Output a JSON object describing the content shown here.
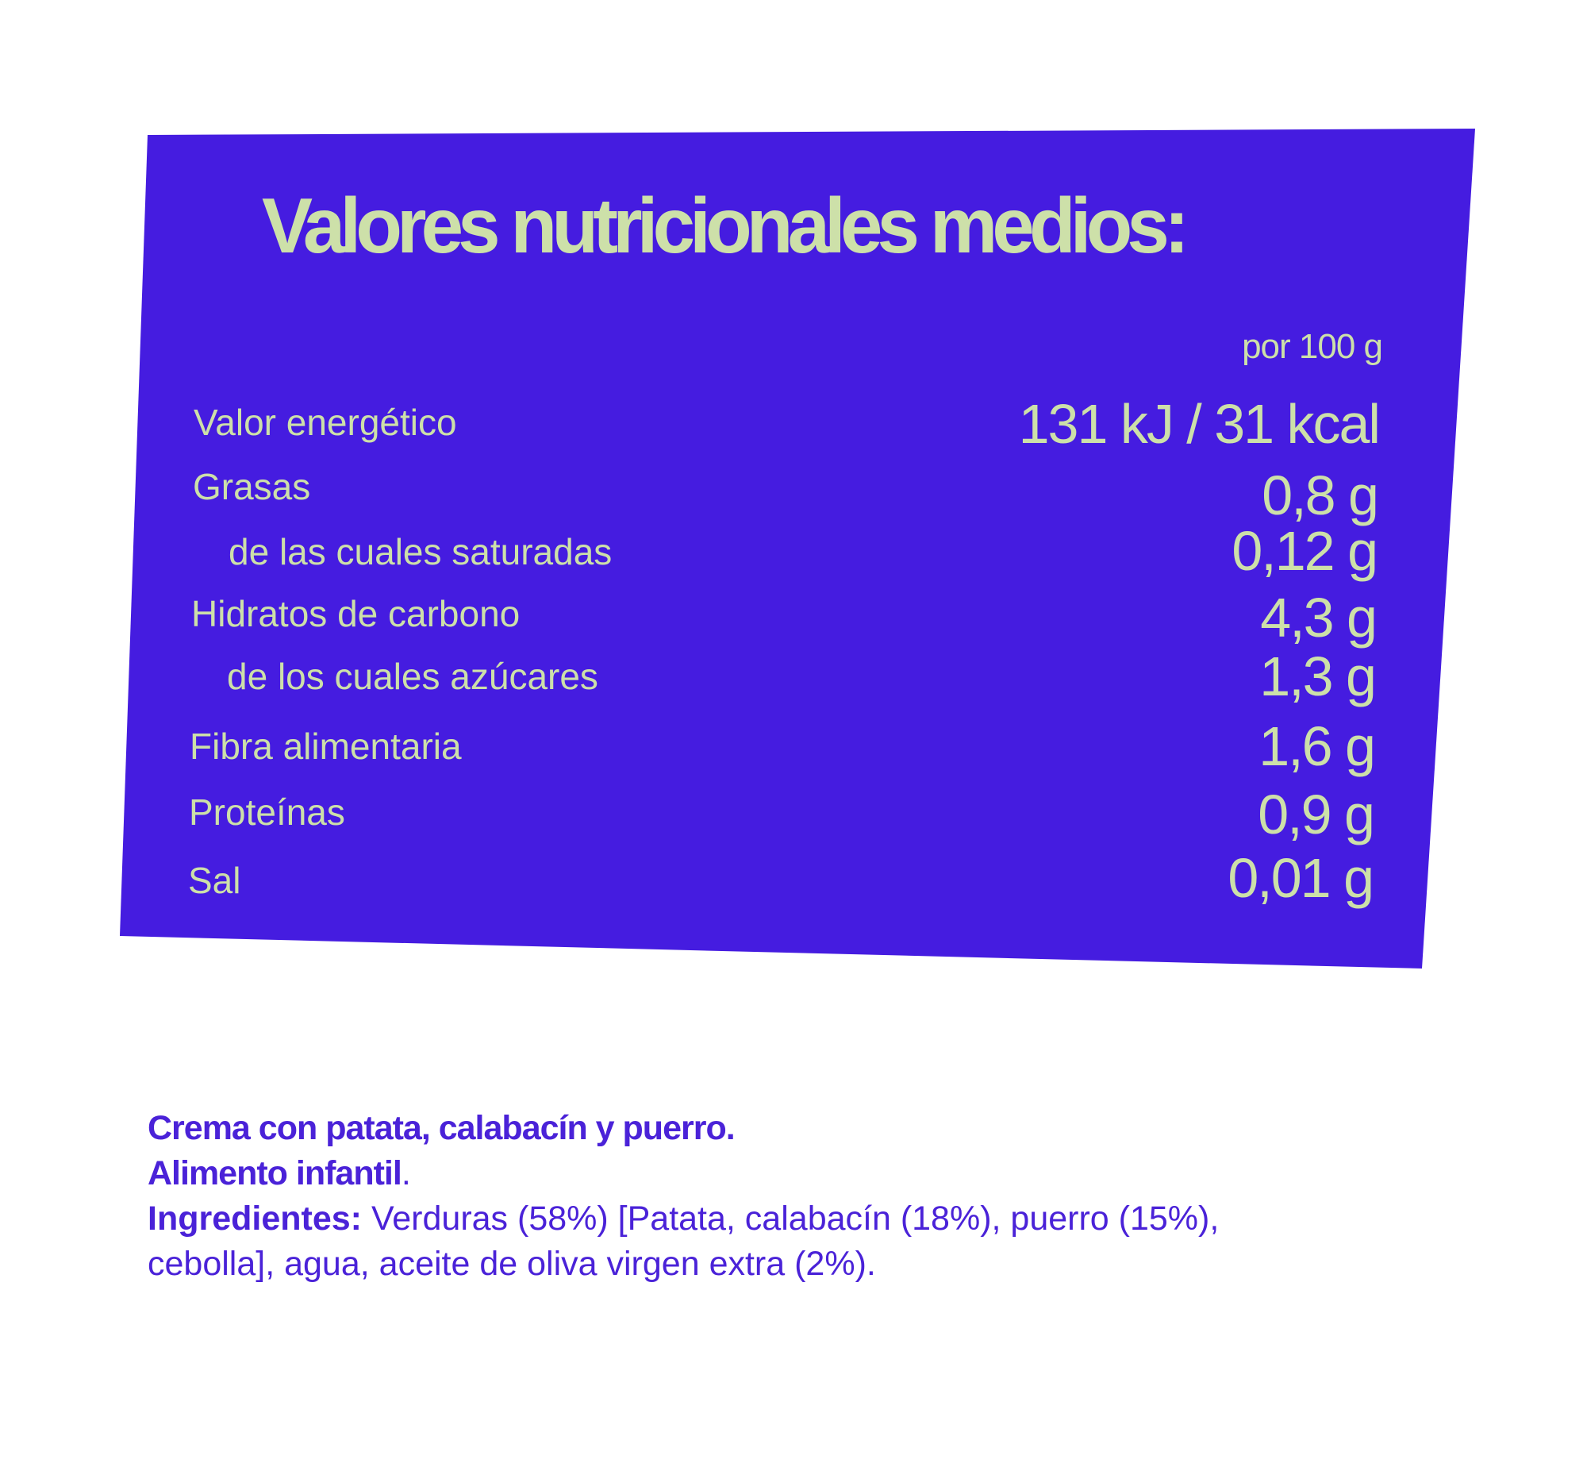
{
  "colors": {
    "panel": "#451ce0",
    "panel_text": "#cde0a9",
    "ingredients_text": "#4a22d8"
  },
  "nutrition": {
    "title": "Valores nutricionales medios:",
    "per": "por 100 g",
    "rows": [
      {
        "label": "Valor energético",
        "value": "131 kJ / 31 kcal"
      },
      {
        "label": "Grasas",
        "value": "0,8 g"
      },
      {
        "label": "de las cuales saturadas",
        "value": "0,12 g"
      },
      {
        "label": "Hidratos de carbono",
        "value": "4,3 g"
      },
      {
        "label": "de los cuales azúcares",
        "value": "1,3 g"
      },
      {
        "label": "Fibra alimentaria",
        "value": "1,6 g"
      },
      {
        "label": "Proteínas",
        "value": "0,9 g"
      },
      {
        "label": "Sal",
        "value": "0,01 g"
      }
    ]
  },
  "product": {
    "name": "Crema con patata, calabacín y puerro.",
    "type": "Alimento infantil",
    "type_end": ".",
    "ingredients_label": "Ingredientes:",
    "ingredients": " Verduras (58%) [Patata, calabacín (18%), puerro (15%), cebolla], agua, aceite de oliva virgen extra (2%)."
  }
}
